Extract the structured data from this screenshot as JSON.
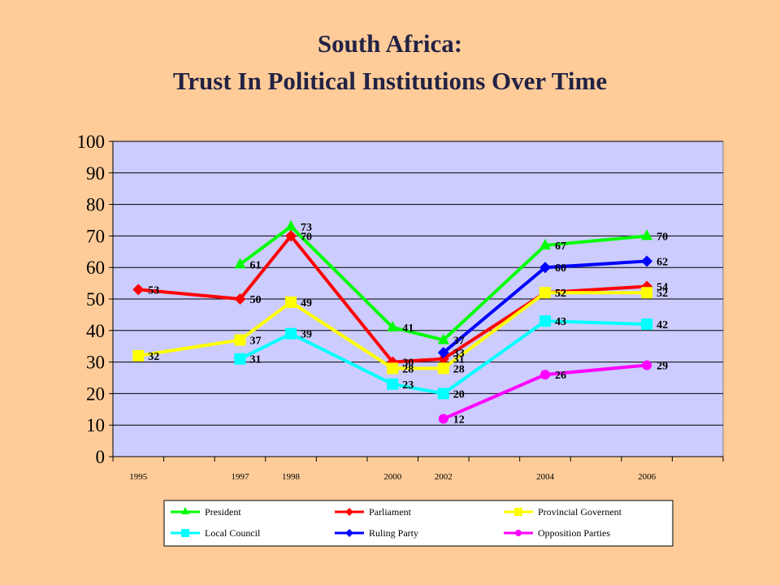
{
  "chart_data": {
    "type": "line",
    "title": "South Africa:",
    "subtitle": "Trust In Political Institutions Over Time",
    "xlabel": "",
    "ylabel": "",
    "categories": [
      "1995",
      "",
      "1997",
      "1998",
      "",
      "2000",
      "2002",
      "",
      "2004",
      "",
      "2006",
      ""
    ],
    "ylim": [
      0,
      100
    ],
    "yticks": [
      0,
      10,
      20,
      30,
      40,
      50,
      60,
      70,
      80,
      90,
      100
    ],
    "grid": true,
    "legend_position": "bottom",
    "plot_background": "#CCCCFF",
    "series": [
      {
        "name": "President",
        "color": "#00FF00",
        "marker": "triangle",
        "points": [
          [
            "1997",
            61
          ],
          [
            "1998",
            73
          ],
          [
            "2000",
            41
          ],
          [
            "2002",
            37
          ],
          [
            "2004",
            67
          ],
          [
            "2006",
            70
          ]
        ]
      },
      {
        "name": "Parliament",
        "color": "#FF0000",
        "marker": "diamond",
        "points": [
          [
            "1995",
            53
          ],
          [
            "1997",
            50
          ],
          [
            "1998",
            70
          ],
          [
            "2000",
            30
          ],
          [
            "2002",
            31
          ],
          [
            "2004",
            52
          ],
          [
            "2006",
            54
          ]
        ]
      },
      {
        "name": "Provincial Governent",
        "color": "#FFFF00",
        "marker": "square",
        "points": [
          [
            "1995",
            32
          ],
          [
            "1997",
            37
          ],
          [
            "1998",
            49
          ],
          [
            "2000",
            28
          ],
          [
            "2002",
            28
          ],
          [
            "2004",
            52
          ],
          [
            "2006",
            52
          ]
        ]
      },
      {
        "name": "Local Council",
        "color": "#00FFFF",
        "marker": "square",
        "points": [
          [
            "1997",
            31
          ],
          [
            "1998",
            39
          ],
          [
            "2000",
            23
          ],
          [
            "2002",
            20
          ],
          [
            "2004",
            43
          ],
          [
            "2006",
            42
          ]
        ]
      },
      {
        "name": "Ruling Party",
        "color": "#0000FF",
        "marker": "diamond",
        "points": [
          [
            "2002",
            33
          ],
          [
            "2004",
            60
          ],
          [
            "2006",
            62
          ]
        ]
      },
      {
        "name": "Opposition Parties",
        "color": "#FF00FF",
        "marker": "circle",
        "points": [
          [
            "2002",
            12
          ],
          [
            "2004",
            26
          ],
          [
            "2006",
            29
          ]
        ]
      }
    ]
  }
}
